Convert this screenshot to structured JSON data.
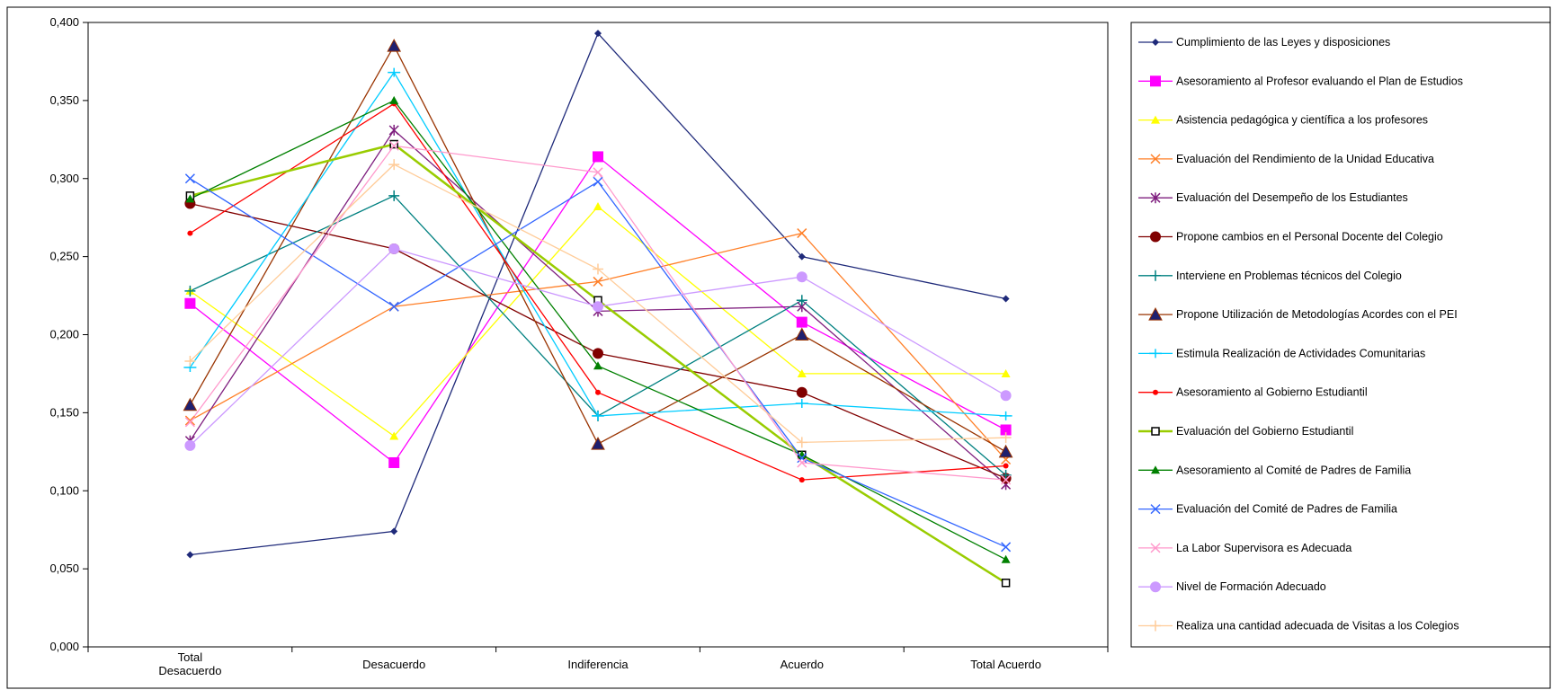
{
  "chart_data": {
    "type": "line",
    "title": "",
    "xlabel": "",
    "ylabel": "",
    "categories": [
      [
        "Total",
        "Desacuerdo"
      ],
      [
        "Desacuerdo"
      ],
      [
        "Indiferencia"
      ],
      [
        "Acuerdo"
      ],
      [
        "Total Acuerdo"
      ]
    ],
    "ylim": [
      0,
      0.4
    ],
    "yticks": [
      "0,000",
      "0,050",
      "0,100",
      "0,150",
      "0,200",
      "0,250",
      "0,300",
      "0,350",
      "0,400"
    ],
    "grid": false,
    "legend_position": "right",
    "series": [
      {
        "name": "Cumplimiento de las Leyes y  disposiciones",
        "color": "#1f2a7a",
        "marker": "diamond",
        "values": [
          0.059,
          0.074,
          0.393,
          0.25,
          0.223
        ]
      },
      {
        "name": "Asesoramiento al Profesor evaluando el Plan de Estudios",
        "color": "#ff00ff",
        "marker": "square",
        "values": [
          0.22,
          0.118,
          0.314,
          0.208,
          0.139
        ]
      },
      {
        "name": "Asistencia pedagógica y  científica a los profesores",
        "color": "#ffff00",
        "marker": "triangle",
        "values": [
          0.228,
          0.135,
          0.282,
          0.175,
          0.175
        ]
      },
      {
        "name": "Evaluación del Rendimiento de la Unidad Educativa",
        "color": "#ff7f27",
        "marker": "x",
        "values": [
          0.145,
          0.218,
          0.234,
          0.265,
          0.12
        ]
      },
      {
        "name": "Evaluación del Desempeño de los Estudiantes",
        "color": "#7f1f7f",
        "marker": "star",
        "values": [
          0.132,
          0.331,
          0.215,
          0.218,
          0.104
        ]
      },
      {
        "name": "Propone cambios en el Personal Docente del Colegio",
        "color": "#800000",
        "marker": "circle",
        "values": [
          0.284,
          0.255,
          0.188,
          0.163,
          0.108
        ]
      },
      {
        "name": "Interviene en Problemas técnicos del Colegio",
        "color": "#008080",
        "marker": "plus",
        "values": [
          0.228,
          0.289,
          0.148,
          0.222,
          0.11
        ]
      },
      {
        "name": "Propone Utilización de Metodologías Acordes con el PEI",
        "color": "#993300",
        "marker": "triangle-dark",
        "values": [
          0.155,
          0.385,
          0.13,
          0.2,
          0.125
        ]
      },
      {
        "name": "Estimula Realización de Actividades Comunitarias",
        "color": "#00ccff",
        "marker": "dash",
        "values": [
          0.179,
          0.368,
          0.148,
          0.156,
          0.148
        ]
      },
      {
        "name": "Asesoramiento al Gobierno Estudiantil",
        "color": "#ff0000",
        "marker": "circle-small",
        "values": [
          0.265,
          0.348,
          0.163,
          0.107,
          0.116
        ]
      },
      {
        "name": "Evaluación del Gobierno Estudiantil",
        "color": "#99cc00",
        "marker": "square-open",
        "values": [
          0.289,
          0.322,
          0.222,
          0.123,
          0.041
        ]
      },
      {
        "name": "Asesoramiento al Comité de Padres de Familia",
        "color": "#008000",
        "marker": "triangle-green",
        "values": [
          0.287,
          0.35,
          0.18,
          0.123,
          0.056
        ]
      },
      {
        "name": "Evaluación del Comité de Padres de Familia",
        "color": "#3366ff",
        "marker": "x",
        "values": [
          0.3,
          0.218,
          0.298,
          0.121,
          0.064
        ]
      },
      {
        "name": "La Labor Supervisora es Adecuada",
        "color": "#ff99cc",
        "marker": "x",
        "values": [
          0.144,
          0.321,
          0.304,
          0.118,
          0.107
        ]
      },
      {
        "name": "Nivel de Formación Adecuado",
        "color": "#cc99ff",
        "marker": "circle",
        "values": [
          0.129,
          0.255,
          0.218,
          0.237,
          0.161
        ]
      },
      {
        "name": "Realiza una cantidad adecuada de  Visitas a los Colegios",
        "color": "#ffcc99",
        "marker": "plus",
        "values": [
          0.183,
          0.309,
          0.242,
          0.131,
          0.134
        ]
      }
    ]
  }
}
